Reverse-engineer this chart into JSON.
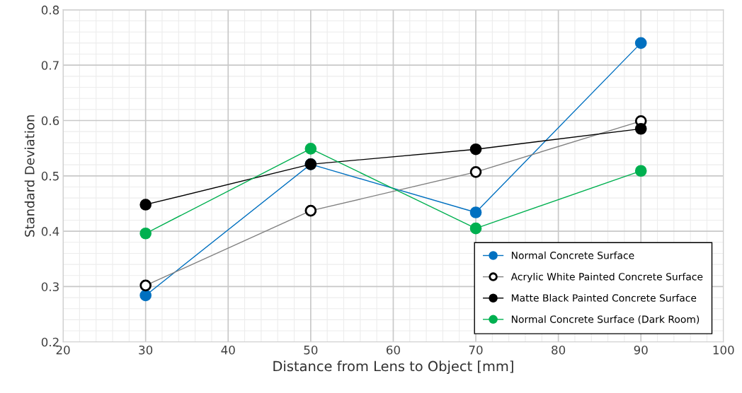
{
  "chart_data": {
    "type": "line",
    "xlabel": "Distance from Lens to Object [mm]",
    "ylabel": "Standard Deviation",
    "x": [
      30,
      50,
      70,
      90
    ],
    "xlim": [
      20,
      100
    ],
    "xticks": [
      20,
      30,
      40,
      50,
      60,
      70,
      80,
      90,
      100
    ],
    "ylim": [
      0.2,
      0.8
    ],
    "yticks": [
      0.2,
      0.3,
      0.4,
      0.5,
      0.6,
      0.7,
      0.8
    ],
    "grid": true,
    "legend": "bottom right",
    "marker": "circle",
    "line_style": "solid",
    "series": [
      {
        "name": "Normal Concrete Surface",
        "color": "#0070c0",
        "values": [
          0.284,
          0.521,
          0.434,
          0.74
        ]
      },
      {
        "name": "Acrylic White Painted Concrete Surface",
        "color": "#ffffff",
        "values": [
          0.302,
          0.437,
          0.507,
          0.599
        ]
      },
      {
        "name": "Matte Black Painted Concrete Surface",
        "color": "#000000",
        "values": [
          0.448,
          0.521,
          0.548,
          0.585
        ]
      },
      {
        "name": "Normal Concrete Surface (Dark Room)",
        "color": "#00b050",
        "values": [
          0.396,
          0.549,
          0.405,
          0.509
        ]
      }
    ]
  }
}
